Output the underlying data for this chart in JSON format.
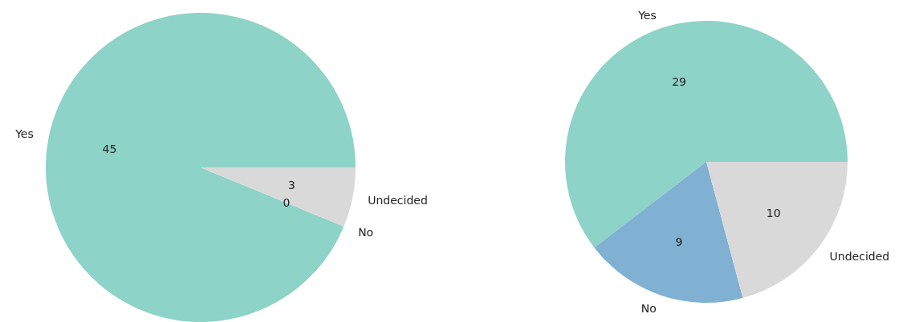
{
  "chart_data": [
    {
      "type": "pie",
      "categories": [
        "Yes",
        "No",
        "Undecided"
      ],
      "values": [
        45,
        0,
        3
      ],
      "value_labels": [
        "45",
        "0",
        "3"
      ],
      "colors": [
        "#8dd3c7",
        "#80b1d3",
        "#d9d9d9"
      ]
    },
    {
      "type": "pie",
      "categories": [
        "Yes",
        "No",
        "Undecided"
      ],
      "values": [
        29,
        9,
        10
      ],
      "colors": [
        "#8dd3c7",
        "#80b1d3",
        "#d9d9d9"
      ],
      "data_labels": true
    }
  ]
}
